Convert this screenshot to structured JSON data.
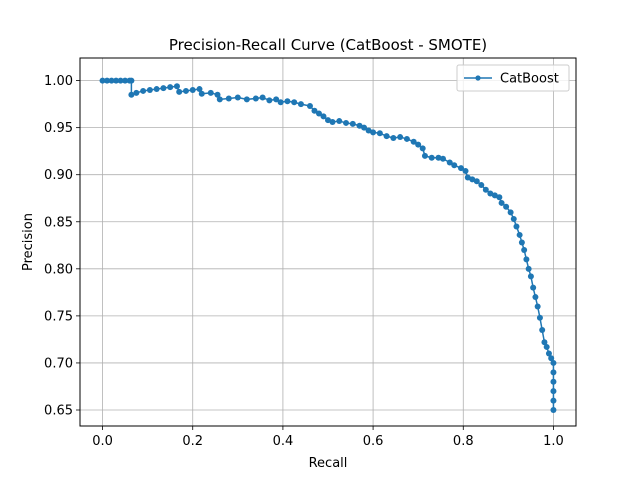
{
  "chart_data": {
    "type": "line",
    "title": "Precision-Recall Curve (CatBoost - SMOTE)",
    "xlabel": "Recall",
    "ylabel": "Precision",
    "xlim": [
      -0.05,
      1.05
    ],
    "ylim": [
      0.633,
      1.024
    ],
    "xticks": [
      0.0,
      0.2,
      0.4,
      0.6,
      0.8,
      1.0
    ],
    "yticks": [
      0.65,
      0.7,
      0.75,
      0.8,
      0.85,
      0.9,
      0.95,
      1.0
    ],
    "grid": true,
    "legend": {
      "location": "upper right",
      "entries": [
        "CatBoost"
      ]
    },
    "series": [
      {
        "name": "CatBoost",
        "color": "#1f77b4",
        "marker": "circle",
        "points": [
          [
            0.0,
            1.0
          ],
          [
            0.01,
            1.0
          ],
          [
            0.02,
            1.0
          ],
          [
            0.03,
            1.0
          ],
          [
            0.04,
            1.0
          ],
          [
            0.05,
            1.0
          ],
          [
            0.06,
            1.0
          ],
          [
            0.064,
            1.0
          ],
          [
            0.064,
            0.985
          ],
          [
            0.075,
            0.987
          ],
          [
            0.09,
            0.989
          ],
          [
            0.105,
            0.99
          ],
          [
            0.12,
            0.991
          ],
          [
            0.135,
            0.992
          ],
          [
            0.15,
            0.993
          ],
          [
            0.165,
            0.994
          ],
          [
            0.17,
            0.988
          ],
          [
            0.185,
            0.989
          ],
          [
            0.2,
            0.99
          ],
          [
            0.215,
            0.991
          ],
          [
            0.22,
            0.986
          ],
          [
            0.24,
            0.987
          ],
          [
            0.255,
            0.985
          ],
          [
            0.26,
            0.98
          ],
          [
            0.28,
            0.981
          ],
          [
            0.3,
            0.982
          ],
          [
            0.32,
            0.98
          ],
          [
            0.34,
            0.981
          ],
          [
            0.355,
            0.982
          ],
          [
            0.37,
            0.979
          ],
          [
            0.385,
            0.98
          ],
          [
            0.395,
            0.977
          ],
          [
            0.41,
            0.978
          ],
          [
            0.425,
            0.977
          ],
          [
            0.44,
            0.975
          ],
          [
            0.46,
            0.973
          ],
          [
            0.47,
            0.968
          ],
          [
            0.48,
            0.965
          ],
          [
            0.49,
            0.962
          ],
          [
            0.5,
            0.958
          ],
          [
            0.51,
            0.956
          ],
          [
            0.525,
            0.957
          ],
          [
            0.54,
            0.955
          ],
          [
            0.555,
            0.954
          ],
          [
            0.57,
            0.952
          ],
          [
            0.58,
            0.95
          ],
          [
            0.59,
            0.947
          ],
          [
            0.6,
            0.945
          ],
          [
            0.615,
            0.944
          ],
          [
            0.63,
            0.941
          ],
          [
            0.645,
            0.939
          ],
          [
            0.66,
            0.94
          ],
          [
            0.675,
            0.938
          ],
          [
            0.69,
            0.935
          ],
          [
            0.7,
            0.932
          ],
          [
            0.71,
            0.928
          ],
          [
            0.715,
            0.92
          ],
          [
            0.73,
            0.918
          ],
          [
            0.745,
            0.918
          ],
          [
            0.755,
            0.917
          ],
          [
            0.77,
            0.913
          ],
          [
            0.78,
            0.91
          ],
          [
            0.795,
            0.907
          ],
          [
            0.805,
            0.904
          ],
          [
            0.81,
            0.897
          ],
          [
            0.82,
            0.895
          ],
          [
            0.83,
            0.893
          ],
          [
            0.84,
            0.889
          ],
          [
            0.85,
            0.884
          ],
          [
            0.86,
            0.88
          ],
          [
            0.87,
            0.878
          ],
          [
            0.88,
            0.876
          ],
          [
            0.885,
            0.87
          ],
          [
            0.895,
            0.866
          ],
          [
            0.905,
            0.86
          ],
          [
            0.912,
            0.853
          ],
          [
            0.918,
            0.845
          ],
          [
            0.925,
            0.836
          ],
          [
            0.93,
            0.828
          ],
          [
            0.935,
            0.82
          ],
          [
            0.94,
            0.81
          ],
          [
            0.945,
            0.8
          ],
          [
            0.95,
            0.792
          ],
          [
            0.955,
            0.78
          ],
          [
            0.96,
            0.77
          ],
          [
            0.965,
            0.76
          ],
          [
            0.97,
            0.748
          ],
          [
            0.975,
            0.735
          ],
          [
            0.98,
            0.722
          ],
          [
            0.985,
            0.717
          ],
          [
            0.99,
            0.71
          ],
          [
            0.995,
            0.705
          ],
          [
            1.0,
            0.7
          ],
          [
            1.0,
            0.69
          ],
          [
            1.0,
            0.68
          ],
          [
            1.0,
            0.67
          ],
          [
            1.0,
            0.66
          ],
          [
            1.0,
            0.65
          ]
        ]
      }
    ]
  }
}
